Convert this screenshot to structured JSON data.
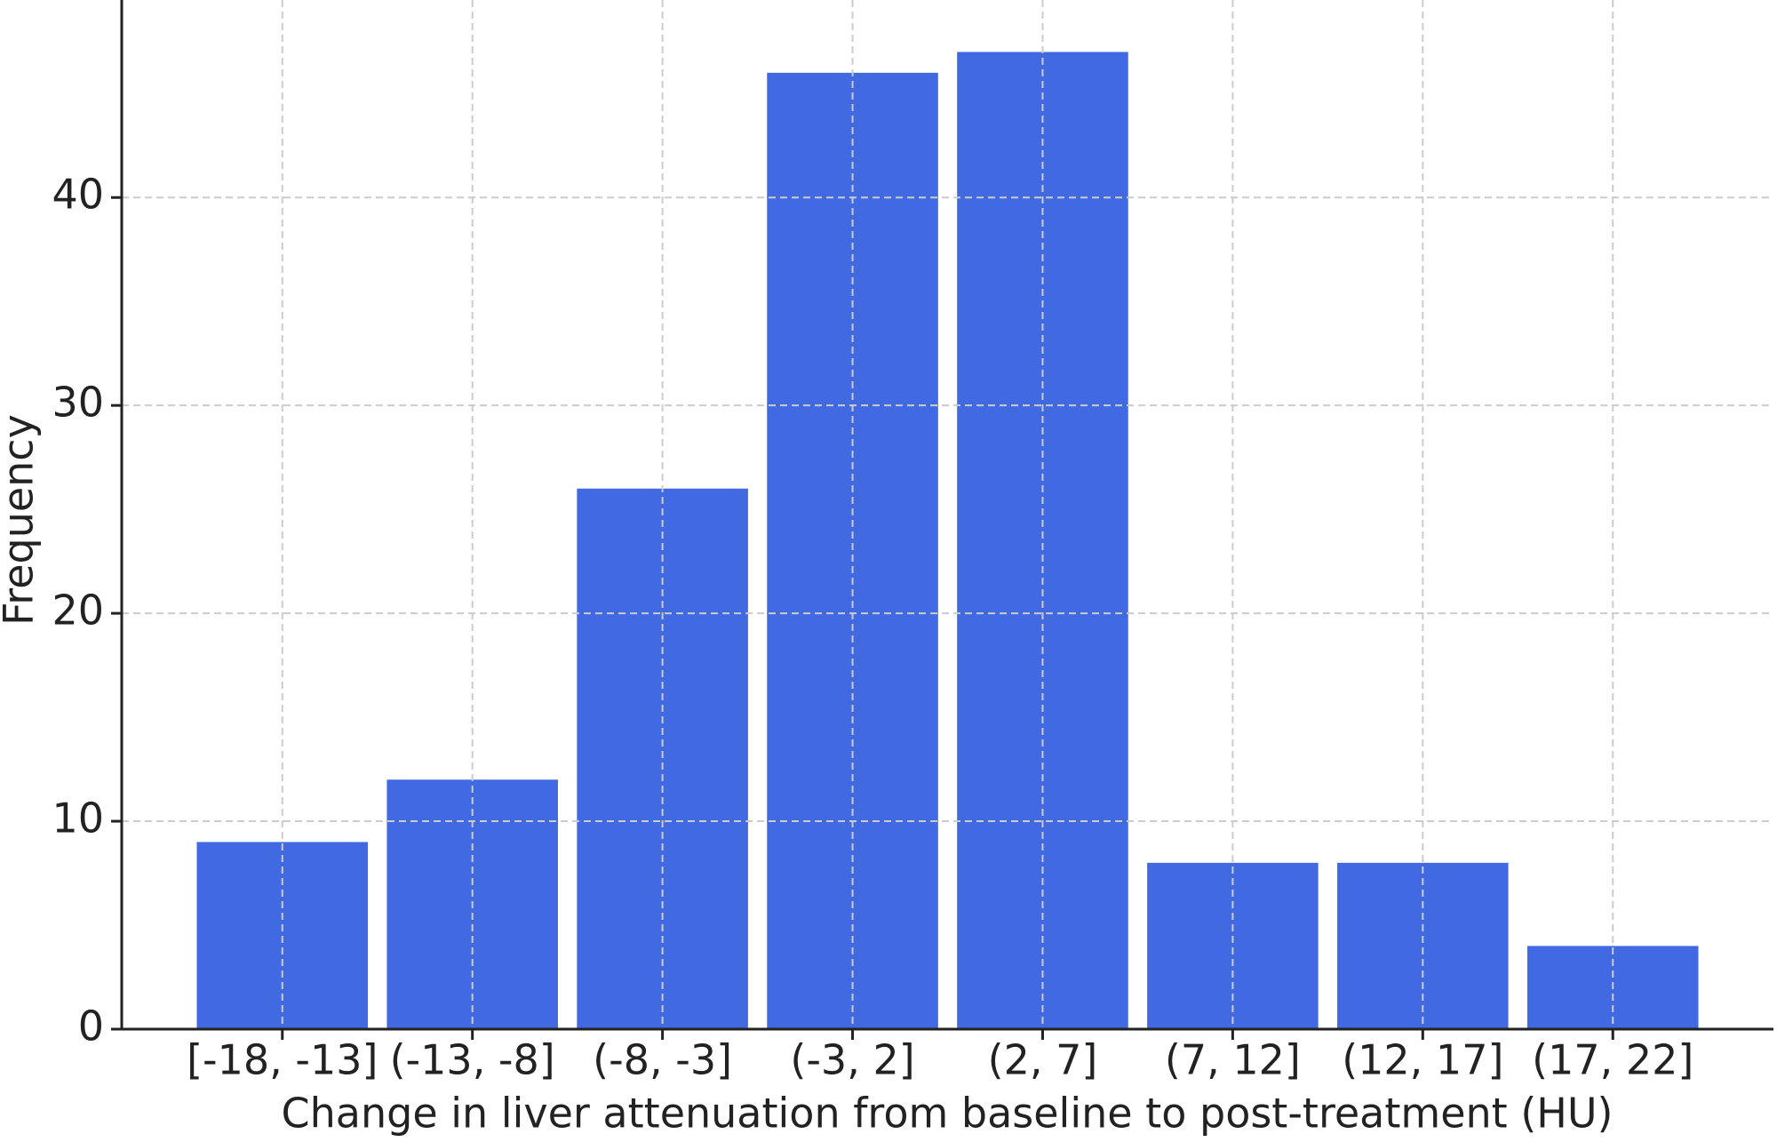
{
  "chart_data": {
    "type": "bar",
    "xlabel": "Change in liver attenuation from baseline to post-treatment (HU)",
    "ylabel": "Frequency",
    "categories": [
      "[-18, -13]",
      "(-13, -8]",
      "(-8, -3]",
      "(-3, 2]",
      "(2, 7]",
      "(7, 12]",
      "(12, 17]",
      "(17, 22]"
    ],
    "values": [
      9,
      12,
      26,
      46,
      47,
      8,
      8,
      4
    ],
    "color": "#4169e1",
    "ylim": [
      0,
      49.5
    ],
    "yticks": [
      0,
      10,
      20,
      30,
      40
    ],
    "grid": true
  }
}
